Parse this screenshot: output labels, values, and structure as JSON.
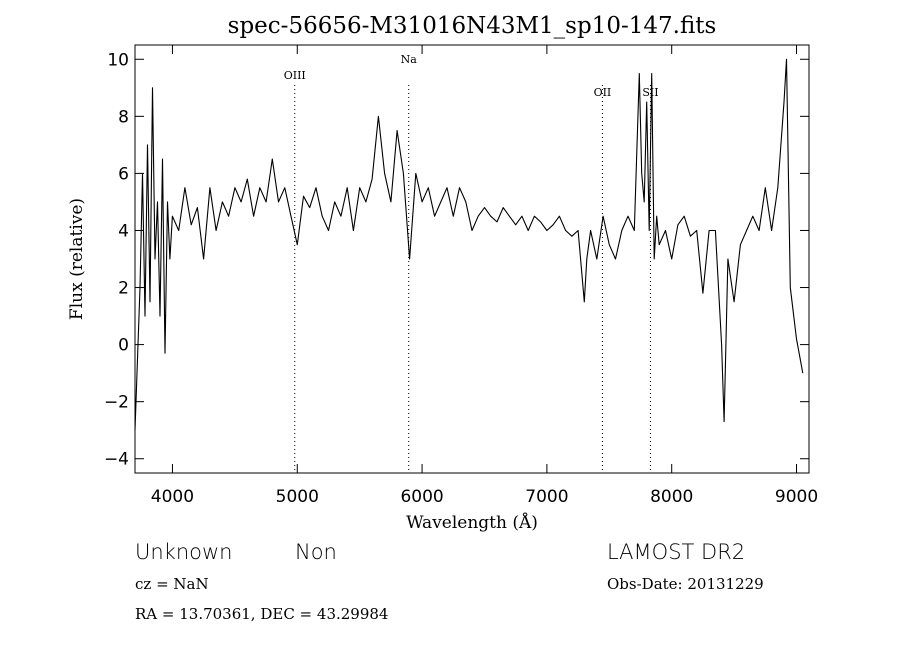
{
  "info": {
    "class": "Unknown",
    "subclass": "Non",
    "cz": "cz = NaN",
    "radec": "RA =  13.70361, DEC =  43.29984",
    "survey": "LAMOST DR2",
    "obsdate": "Obs-Date: 20131229"
  },
  "chart_data": {
    "type": "line",
    "title": "spec-56656-M31016N43M1_sp10-147.fits",
    "xlabel": "Wavelength (Å)",
    "ylabel": "Flux (relative)",
    "xlim": [
      3700,
      9100
    ],
    "ylim": [
      -4.5,
      10.5
    ],
    "xticks": [
      4000,
      5000,
      6000,
      7000,
      8000,
      9000
    ],
    "yticks": [
      -4,
      -2,
      0,
      2,
      4,
      6,
      8,
      10
    ],
    "grid": false,
    "line_markers": [
      {
        "label": "OIII",
        "x": 4980
      },
      {
        "label": "Na",
        "x": 5893
      },
      {
        "label": "OII",
        "x": 7445
      },
      {
        "label": "SII",
        "x": 7830
      }
    ],
    "series": [
      {
        "x": [
          3700,
          3740,
          3760,
          3780,
          3800,
          3820,
          3840,
          3860,
          3880,
          3900,
          3920,
          3940,
          3960,
          3980,
          4000,
          4050,
          4100,
          4150,
          4200,
          4250,
          4300,
          4350,
          4400,
          4450,
          4500,
          4550,
          4600,
          4650,
          4700,
          4750,
          4800,
          4850,
          4900,
          4950,
          5000,
          5050,
          5100,
          5150,
          5200,
          5250,
          5300,
          5350,
          5400,
          5450,
          5500,
          5550,
          5600,
          5650,
          5700,
          5750,
          5800,
          5850,
          5900,
          5950,
          6000,
          6050,
          6100,
          6150,
          6200,
          6250,
          6300,
          6350,
          6400,
          6450,
          6500,
          6550,
          6600,
          6650,
          6700,
          6750,
          6800,
          6850,
          6900,
          6950,
          7000,
          7050,
          7100,
          7150,
          7200,
          7250,
          7300,
          7320,
          7350,
          7400,
          7450,
          7500,
          7550,
          7600,
          7650,
          7700,
          7740,
          7760,
          7780,
          7800,
          7820,
          7840,
          7860,
          7880,
          7900,
          7950,
          8000,
          8050,
          8100,
          8150,
          8200,
          8250,
          8300,
          8350,
          8400,
          8420,
          8450,
          8500,
          8550,
          8600,
          8650,
          8700,
          8750,
          8800,
          8850,
          8900,
          8920,
          8950,
          9000,
          9050
        ],
        "y": [
          -3.0,
          2.0,
          6.0,
          1.0,
          7.0,
          1.5,
          9.0,
          3.0,
          5.0,
          1.0,
          6.5,
          -0.3,
          5.0,
          3.0,
          4.5,
          4.0,
          5.5,
          4.2,
          4.8,
          3.0,
          5.5,
          4.0,
          5.0,
          4.5,
          5.5,
          5.0,
          5.8,
          4.5,
          5.5,
          5.0,
          6.5,
          5.0,
          5.5,
          4.5,
          3.5,
          5.2,
          4.8,
          5.5,
          4.5,
          4.0,
          5.0,
          4.5,
          5.5,
          4.0,
          5.5,
          5.0,
          5.8,
          8.0,
          6.0,
          5.0,
          7.5,
          6.0,
          3.0,
          6.0,
          5.0,
          5.5,
          4.5,
          5.0,
          5.5,
          4.5,
          5.5,
          5.0,
          4.0,
          4.5,
          4.8,
          4.5,
          4.3,
          4.8,
          4.5,
          4.2,
          4.5,
          4.0,
          4.5,
          4.3,
          4.0,
          4.2,
          4.5,
          4.0,
          3.8,
          4.0,
          1.5,
          3.0,
          4.0,
          3.0,
          4.5,
          3.5,
          3.0,
          4.0,
          4.5,
          4.0,
          9.5,
          6.0,
          5.0,
          8.5,
          4.0,
          9.5,
          3.0,
          4.5,
          3.5,
          4.0,
          3.0,
          4.2,
          4.5,
          3.8,
          4.0,
          1.8,
          4.0,
          4.0,
          0.0,
          -2.7,
          3.0,
          1.5,
          3.5,
          4.0,
          4.5,
          4.0,
          5.5,
          4.0,
          5.5,
          8.5,
          10.0,
          2.0,
          0.2,
          -1.0
        ]
      }
    ]
  }
}
